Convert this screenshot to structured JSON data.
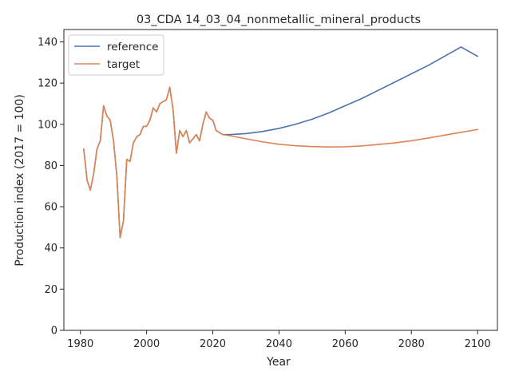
{
  "chart_data": {
    "type": "line",
    "title": "03_CDA 14_03_04_nonmetallic_mineral_products",
    "xlabel": "Year",
    "ylabel": "Production index (2017 = 100)",
    "xlim": [
      1975,
      2106
    ],
    "ylim": [
      0,
      146
    ],
    "xticks": [
      1980,
      2000,
      2020,
      2040,
      2060,
      2080,
      2100
    ],
    "yticks": [
      0,
      20,
      40,
      60,
      80,
      100,
      120,
      140
    ],
    "legend_position": "top-left",
    "series": [
      {
        "name": "reference",
        "color": "#4c72b0",
        "x": [
          1981,
          1982,
          1983,
          1984,
          1985,
          1986,
          1987,
          1988,
          1989,
          1990,
          1991,
          1992,
          1993,
          1994,
          1995,
          1996,
          1997,
          1998,
          1999,
          2000,
          2001,
          2002,
          2003,
          2004,
          2005,
          2006,
          2007,
          2008,
          2009,
          2010,
          2011,
          2012,
          2013,
          2014,
          2015,
          2016,
          2017,
          2018,
          2019,
          2020,
          2021,
          2022,
          2023,
          2025,
          2030,
          2035,
          2040,
          2045,
          2050,
          2055,
          2060,
          2065,
          2070,
          2075,
          2080,
          2085,
          2090,
          2095,
          2100
        ],
        "values": [
          88,
          73,
          68,
          76,
          88,
          92,
          109,
          104,
          102,
          92,
          75,
          45,
          53,
          83,
          82,
          91,
          94,
          95,
          99,
          99,
          102,
          108,
          106,
          110,
          111,
          112,
          118,
          107,
          86,
          97,
          94,
          97,
          91,
          93,
          95,
          92,
          100,
          106,
          103,
          102,
          97,
          96,
          95,
          95,
          95.5,
          96.5,
          98,
          100,
          102.5,
          105.5,
          109,
          112.5,
          116.5,
          120.5,
          124.5,
          128.5,
          133,
          137.5,
          133
        ]
      },
      {
        "name": "target",
        "color": "#dd8452",
        "x": [
          1981,
          1982,
          1983,
          1984,
          1985,
          1986,
          1987,
          1988,
          1989,
          1990,
          1991,
          1992,
          1993,
          1994,
          1995,
          1996,
          1997,
          1998,
          1999,
          2000,
          2001,
          2002,
          2003,
          2004,
          2005,
          2006,
          2007,
          2008,
          2009,
          2010,
          2011,
          2012,
          2013,
          2014,
          2015,
          2016,
          2017,
          2018,
          2019,
          2020,
          2021,
          2022,
          2023,
          2025,
          2030,
          2035,
          2040,
          2045,
          2050,
          2055,
          2060,
          2065,
          2070,
          2075,
          2080,
          2085,
          2090,
          2095,
          2100
        ],
        "values": [
          88,
          73,
          68,
          76,
          88,
          92,
          109,
          104,
          102,
          92,
          75,
          45,
          53,
          83,
          82,
          91,
          94,
          95,
          99,
          99,
          102,
          108,
          106,
          110,
          111,
          112,
          118,
          107,
          86,
          97,
          94,
          97,
          91,
          93,
          95,
          92,
          100,
          106,
          103,
          102,
          97,
          96,
          95,
          94.5,
          93,
          91.5,
          90.3,
          89.6,
          89.2,
          89,
          89.1,
          89.5,
          90.2,
          91,
          92,
          93.3,
          94.7,
          96.1,
          97.5
        ]
      }
    ]
  }
}
